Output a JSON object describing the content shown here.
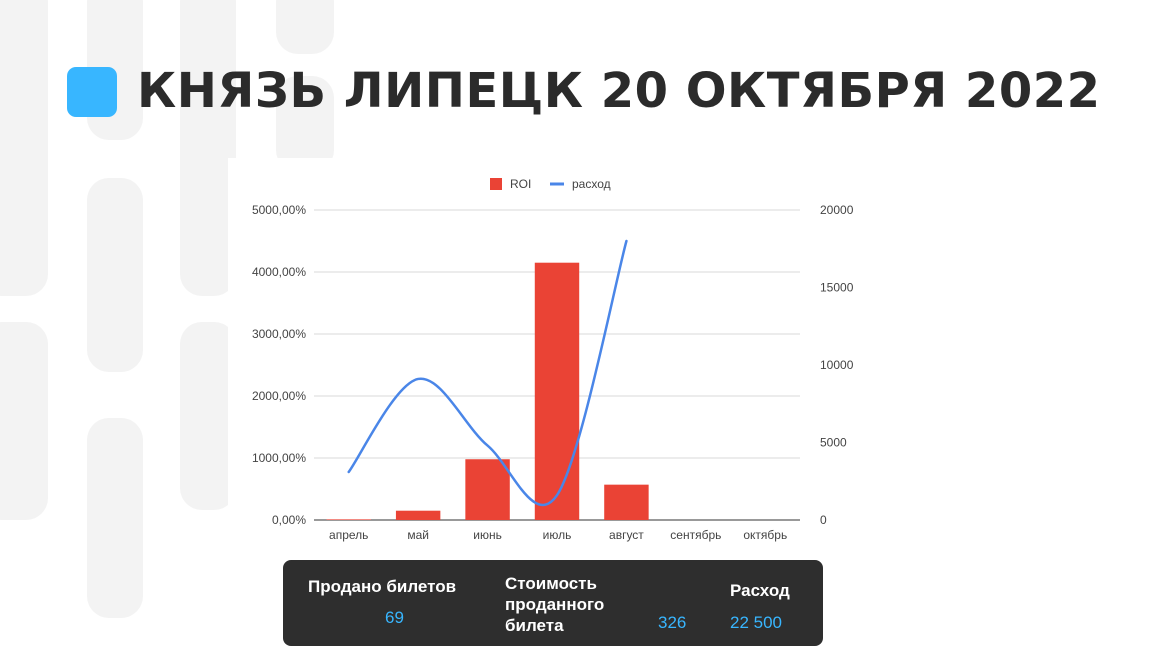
{
  "page": {
    "title": "КНЯЗЬ ЛИПЕЦК 20 ОКТЯБРЯ 2022",
    "accent_color": "#38b6ff"
  },
  "chart_data": {
    "type": "bar",
    "categories": [
      "апрель",
      "май",
      "июнь",
      "июль",
      "август",
      "сентябрь",
      "октябрь"
    ],
    "series": [
      {
        "name": "ROI",
        "type": "bar",
        "axis": "left",
        "color": "#ea4335",
        "values": [
          10,
          150,
          980,
          4150,
          570,
          0,
          0
        ]
      },
      {
        "name": "расход",
        "type": "line",
        "axis": "right",
        "color": "#4a86e8",
        "smooth": true,
        "values": [
          3100,
          9100,
          4800,
          1600,
          18000,
          null,
          null
        ]
      }
    ],
    "y_left": {
      "ylim": [
        0,
        5000
      ],
      "ticks": [
        0,
        1000,
        2000,
        3000,
        4000,
        5000
      ],
      "tick_labels": [
        "0,00%",
        "1000,00%",
        "2000,00%",
        "3000,00%",
        "4000,00%",
        "5000,00%"
      ]
    },
    "y_right": {
      "ylim": [
        0,
        20000
      ],
      "ticks": [
        0,
        5000,
        10000,
        15000,
        20000
      ],
      "tick_labels": [
        "0",
        "5000",
        "10000",
        "15000",
        "20000"
      ]
    },
    "grid": true,
    "legend_position": "top"
  },
  "stats": {
    "tickets_sold_label": "Продано билетов",
    "tickets_sold_value": "69",
    "ticket_cost_label_line1": "Стоимость",
    "ticket_cost_label_line2": "проданного",
    "ticket_cost_label_line3": "билета",
    "ticket_cost_value": "326",
    "expense_label": "Расход",
    "expense_value": "22 500",
    "value_color": "#38b6ff"
  }
}
